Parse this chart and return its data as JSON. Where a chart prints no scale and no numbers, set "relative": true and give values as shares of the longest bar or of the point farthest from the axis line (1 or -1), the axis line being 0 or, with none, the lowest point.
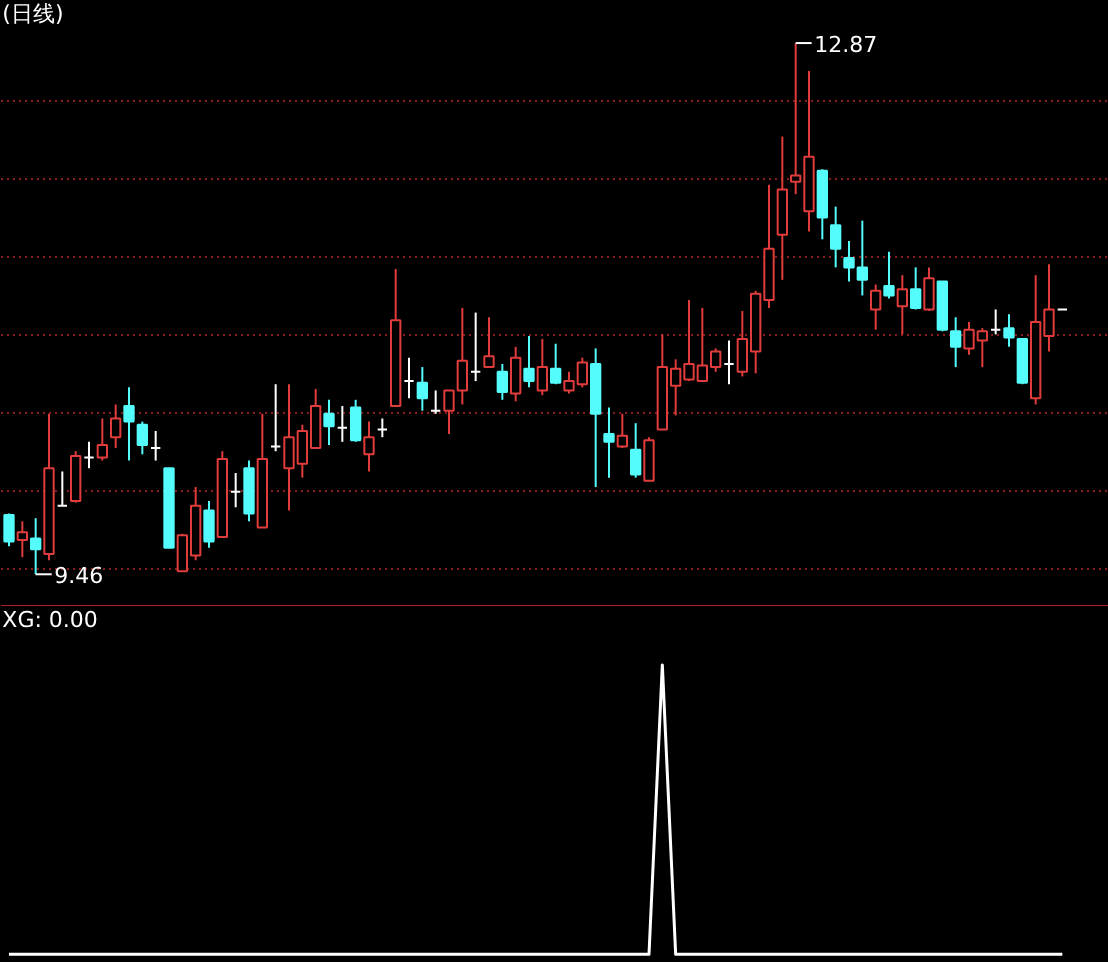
{
  "chart_data": [
    {
      "type": "candlestick",
      "title": "(日线)",
      "categories": [
        null,
        null,
        null,
        null,
        null,
        null,
        null,
        null,
        null,
        null,
        null,
        null,
        null,
        null,
        null,
        null,
        null,
        null,
        null,
        null,
        null,
        null,
        null,
        null,
        null,
        null,
        null,
        null,
        null,
        null,
        null,
        null,
        null,
        null,
        null,
        null,
        null,
        null,
        null,
        null,
        null,
        null,
        null,
        null,
        null,
        null,
        null,
        null,
        null,
        null,
        null,
        null,
        null,
        null,
        null,
        null,
        null,
        null,
        null,
        null,
        null,
        null,
        null,
        null,
        null,
        null,
        null,
        null,
        null,
        null,
        null,
        null,
        null,
        null,
        null,
        null,
        null,
        null,
        null,
        null
      ],
      "ohlc": [
        [
          9.84,
          9.85,
          9.64,
          9.67
        ],
        [
          9.68,
          9.8,
          9.57,
          9.73
        ],
        [
          9.69,
          9.82,
          9.46,
          9.62
        ],
        [
          9.59,
          10.49,
          9.55,
          10.14
        ],
        [
          9.9,
          10.12,
          9.9,
          9.9
        ],
        [
          9.93,
          10.25,
          9.92,
          10.22
        ],
        [
          10.21,
          10.31,
          10.14,
          10.21
        ],
        [
          10.21,
          10.46,
          10.19,
          10.29
        ],
        [
          10.34,
          10.55,
          10.27,
          10.46
        ],
        [
          10.54,
          10.66,
          10.19,
          10.44
        ],
        [
          10.42,
          10.44,
          10.23,
          10.29
        ],
        [
          10.27,
          10.38,
          10.19,
          10.27
        ],
        [
          10.14,
          10.14,
          9.63,
          9.63
        ],
        [
          9.48,
          9.72,
          9.48,
          9.71
        ],
        [
          9.58,
          10.02,
          9.55,
          9.9
        ],
        [
          9.87,
          9.93,
          9.63,
          9.67
        ],
        [
          9.7,
          10.25,
          9.7,
          10.2
        ],
        [
          9.99,
          10.11,
          9.89,
          9.99
        ],
        [
          10.14,
          10.19,
          9.8,
          9.85
        ],
        [
          9.76,
          10.49,
          9.76,
          10.2
        ],
        [
          10.28,
          10.68,
          10.25,
          10.28
        ],
        [
          10.14,
          10.68,
          9.87,
          10.34
        ],
        [
          10.17,
          10.42,
          10.08,
          10.38
        ],
        [
          10.27,
          10.65,
          10.27,
          10.54
        ],
        [
          10.49,
          10.58,
          10.29,
          10.41
        ],
        [
          10.4,
          10.54,
          10.31,
          10.4
        ],
        [
          10.53,
          10.58,
          10.31,
          10.32
        ],
        [
          10.23,
          10.44,
          10.12,
          10.34
        ],
        [
          10.39,
          10.46,
          10.34,
          10.39
        ],
        [
          10.54,
          11.42,
          10.54,
          11.09
        ],
        [
          10.7,
          10.85,
          10.59,
          10.7
        ],
        [
          10.69,
          10.79,
          10.51,
          10.59
        ],
        [
          10.51,
          10.64,
          10.49,
          10.51
        ],
        [
          10.51,
          10.64,
          10.36,
          10.64
        ],
        [
          10.64,
          11.17,
          10.55,
          10.83
        ],
        [
          10.76,
          11.14,
          10.7,
          10.76
        ],
        [
          10.79,
          11.11,
          10.79,
          10.86
        ],
        [
          10.76,
          10.81,
          10.58,
          10.63
        ],
        [
          10.62,
          10.92,
          10.57,
          10.85
        ],
        [
          10.78,
          10.99,
          10.66,
          10.7
        ],
        [
          10.64,
          10.97,
          10.61,
          10.79
        ],
        [
          10.78,
          10.94,
          10.68,
          10.69
        ],
        [
          10.64,
          10.76,
          10.62,
          10.7
        ],
        [
          10.68,
          10.85,
          10.66,
          10.82
        ],
        [
          10.81,
          10.91,
          10.02,
          10.49
        ],
        [
          10.36,
          10.53,
          10.08,
          10.31
        ],
        [
          10.28,
          10.49,
          10.27,
          10.35
        ],
        [
          10.26,
          10.43,
          10.08,
          10.1
        ],
        [
          10.06,
          10.34,
          10.06,
          10.32
        ],
        [
          10.39,
          11.0,
          10.39,
          10.79
        ],
        [
          10.67,
          10.84,
          10.48,
          10.78
        ],
        [
          10.71,
          11.22,
          10.7,
          10.81
        ],
        [
          10.7,
          11.17,
          10.7,
          10.8
        ],
        [
          10.79,
          10.91,
          10.76,
          10.89
        ],
        [
          10.81,
          10.96,
          10.68,
          10.81
        ],
        [
          10.76,
          11.15,
          10.73,
          10.97
        ],
        [
          10.89,
          11.28,
          10.75,
          11.26
        ],
        [
          11.22,
          11.96,
          11.17,
          11.55
        ],
        [
          11.64,
          12.27,
          11.35,
          11.93
        ],
        [
          11.98,
          12.87,
          11.9,
          12.02
        ],
        [
          11.79,
          12.69,
          11.66,
          12.14
        ],
        [
          12.05,
          12.06,
          11.61,
          11.75
        ],
        [
          11.7,
          11.82,
          11.43,
          11.55
        ],
        [
          11.49,
          11.6,
          11.34,
          11.43
        ],
        [
          11.43,
          11.73,
          11.25,
          11.35
        ],
        [
          11.16,
          11.32,
          11.03,
          11.28
        ],
        [
          11.31,
          11.53,
          11.23,
          11.25
        ],
        [
          11.18,
          11.38,
          11.0,
          11.29
        ],
        [
          11.29,
          11.43,
          11.16,
          11.17
        ],
        [
          11.16,
          11.43,
          11.15,
          11.36
        ],
        [
          11.34,
          11.34,
          11.02,
          11.03
        ],
        [
          11.02,
          11.11,
          10.79,
          10.92
        ],
        [
          10.91,
          11.08,
          10.87,
          11.03
        ],
        [
          10.96,
          11.04,
          10.79,
          11.02
        ],
        [
          11.03,
          11.16,
          11.0,
          11.03
        ],
        [
          11.04,
          11.13,
          10.92,
          10.98
        ],
        [
          10.97,
          10.97,
          10.68,
          10.69
        ],
        [
          10.59,
          11.38,
          10.55,
          11.08
        ],
        [
          10.99,
          11.45,
          10.89,
          11.16
        ],
        [
          11.16,
          11.16,
          11.16,
          11.16
        ]
      ],
      "colors": [
        "#54fcfc",
        "#e03c3c",
        "#54fcfc",
        "#e03c3c",
        "#ffffff",
        "#e03c3c",
        "#ffffff",
        "#e03c3c",
        "#e03c3c",
        "#54fcfc",
        "#54fcfc",
        "#ffffff",
        "#54fcfc",
        "#e03c3c",
        "#e03c3c",
        "#54fcfc",
        "#e03c3c",
        "#ffffff",
        "#54fcfc",
        "#e03c3c",
        "#ffffff",
        "#e03c3c",
        "#e03c3c",
        "#e03c3c",
        "#54fcfc",
        "#ffffff",
        "#54fcfc",
        "#e03c3c",
        "#ffffff",
        "#e03c3c",
        "#ffffff",
        "#54fcfc",
        "#ffffff",
        "#e03c3c",
        "#e03c3c",
        "#ffffff",
        "#e03c3c",
        "#54fcfc",
        "#e03c3c",
        "#54fcfc",
        "#e03c3c",
        "#54fcfc",
        "#e03c3c",
        "#e03c3c",
        "#54fcfc",
        "#54fcfc",
        "#e03c3c",
        "#54fcfc",
        "#e03c3c",
        "#e03c3c",
        "#e03c3c",
        "#e03c3c",
        "#e03c3c",
        "#e03c3c",
        "#ffffff",
        "#e03c3c",
        "#e03c3c",
        "#e03c3c",
        "#e03c3c",
        "#e03c3c",
        "#e03c3c",
        "#54fcfc",
        "#54fcfc",
        "#54fcfc",
        "#54fcfc",
        "#e03c3c",
        "#54fcfc",
        "#e03c3c",
        "#54fcfc",
        "#e03c3c",
        "#54fcfc",
        "#54fcfc",
        "#e03c3c",
        "#e03c3c",
        "#ffffff",
        "#54fcfc",
        "#54fcfc",
        "#e03c3c",
        "#e03c3c",
        "#ffffff"
      ],
      "ylim": [
        9.25,
        13.14
      ],
      "yticks": [
        {
          "value": 9.5,
          "label": null
        },
        {
          "value": 10,
          "label": null
        },
        {
          "value": 10.5,
          "label": null
        },
        {
          "value": 11,
          "label": null
        },
        {
          "value": 11.5,
          "label": null
        },
        {
          "value": 12,
          "label": null
        },
        {
          "value": 12.5,
          "label": null
        }
      ],
      "grid": "y",
      "tick_labels": false,
      "annotations": [
        "12.87",
        "9.46"
      ]
    },
    {
      "type": "line",
      "title": "XG: 0.00",
      "relative": true,
      "color": "#ffffff",
      "categories": [
        null,
        null,
        null,
        null,
        null,
        null,
        null,
        null,
        null,
        null,
        null,
        null,
        null,
        null,
        null,
        null,
        null,
        null,
        null,
        null,
        null,
        null,
        null,
        null,
        null,
        null,
        null,
        null,
        null,
        null,
        null,
        null,
        null,
        null,
        null,
        null,
        null,
        null,
        null,
        null,
        null,
        null,
        null,
        null,
        null,
        null,
        null,
        null,
        null,
        null,
        null,
        null,
        null,
        null,
        null,
        null,
        null,
        null,
        null,
        null,
        null,
        null,
        null,
        null,
        null,
        null,
        null,
        null,
        null,
        null,
        null,
        null,
        null,
        null,
        null,
        null,
        null,
        null,
        null,
        null
      ],
      "values": [
        0,
        0,
        0,
        0,
        0,
        0,
        0,
        0,
        0,
        0,
        0,
        0,
        0,
        0,
        0,
        0,
        0,
        0,
        0,
        0,
        0,
        0,
        0,
        0,
        0,
        0,
        0,
        0,
        0,
        0,
        0,
        0,
        0,
        0,
        0,
        0,
        0,
        0,
        0,
        0,
        0,
        0,
        0,
        0,
        0,
        0,
        0,
        0,
        0,
        1,
        0,
        0,
        0,
        0,
        0,
        0,
        0,
        0,
        0,
        0,
        0,
        0,
        0,
        0,
        0,
        0,
        0,
        0,
        0,
        0,
        0,
        0,
        0,
        0,
        0,
        0,
        0,
        0,
        0,
        0
      ]
    }
  ]
}
